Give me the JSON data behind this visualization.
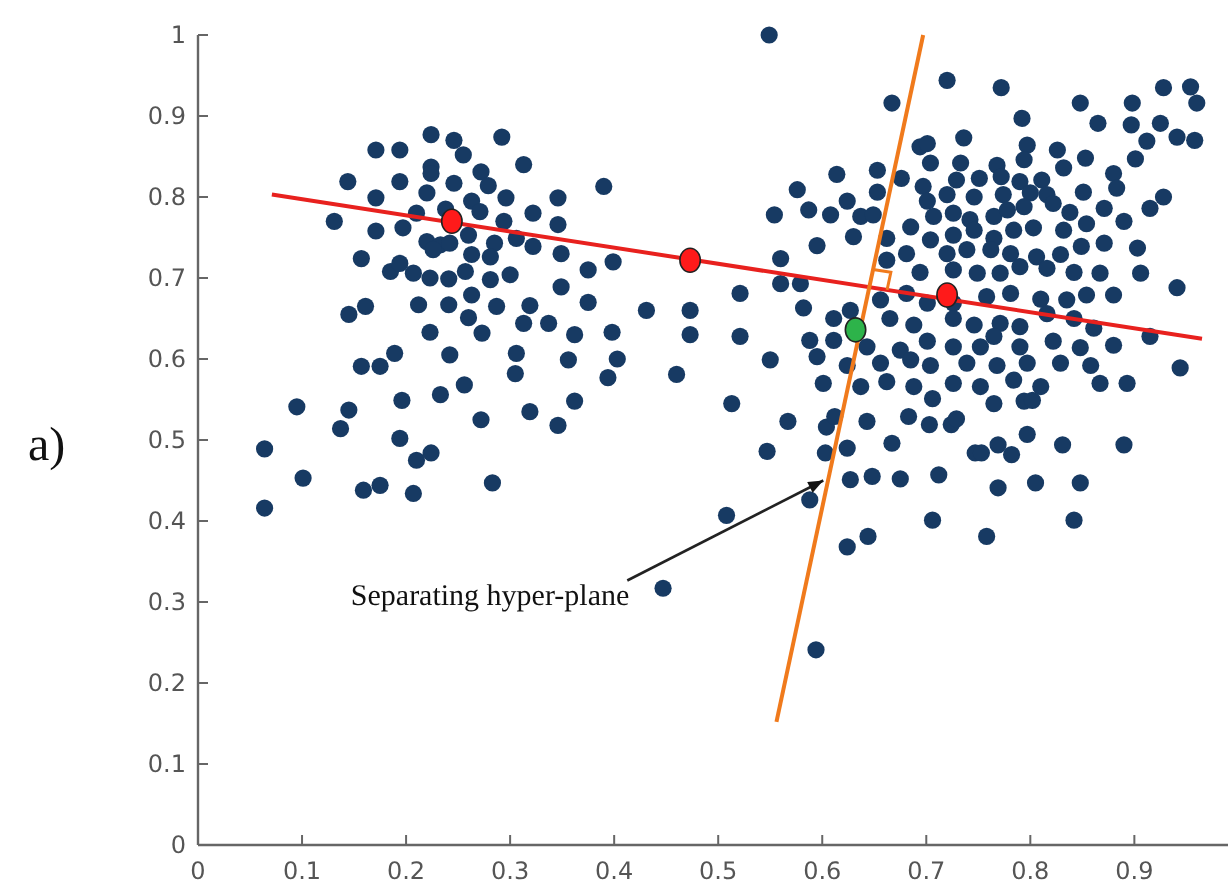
{
  "chart_data": {
    "type": "scatter",
    "xlim": [
      0,
      0.99
    ],
    "ylim": [
      0,
      1
    ],
    "xticks": [
      0,
      0.1,
      0.2,
      0.3,
      0.4,
      0.5,
      0.6,
      0.7,
      0.8,
      0.9
    ],
    "yticks": [
      0,
      0.1,
      0.2,
      0.3,
      0.4,
      0.5,
      0.6,
      0.7,
      0.8,
      0.9,
      1
    ],
    "annotations": [
      {
        "text": "Separating hyper-plane",
        "x": 0.601,
        "y": 0.45
      },
      "a)"
    ],
    "series": [
      {
        "type": "scatter",
        "color": "#173a63",
        "marker": "circle",
        "x": [
          0.224,
          0.246,
          0.292,
          0.171,
          0.194,
          0.255,
          0.313,
          0.224,
          0.224,
          0.272,
          0.279,
          0.144,
          0.194,
          0.246,
          0.39,
          0.22,
          0.171,
          0.263,
          0.296,
          0.346,
          0.21,
          0.238,
          0.271,
          0.322,
          0.131,
          0.197,
          0.171,
          0.294,
          0.346,
          0.26,
          0.306,
          0.322,
          0.22,
          0.233,
          0.242,
          0.226,
          0.285,
          0.263,
          0.281,
          0.349,
          0.157,
          0.399,
          0.375,
          0.185,
          0.194,
          0.207,
          0.223,
          0.241,
          0.257,
          0.281,
          0.3,
          0.349,
          0.145,
          0.161,
          0.212,
          0.241,
          0.263,
          0.287,
          0.319,
          0.337,
          0.313,
          0.26,
          0.273,
          0.223,
          0.362,
          0.375,
          0.398,
          0.431,
          0.473,
          0.473,
          0.189,
          0.157,
          0.175,
          0.242,
          0.306,
          0.356,
          0.403,
          0.394,
          0.46,
          0.305,
          0.256,
          0.196,
          0.233,
          0.362,
          0.095,
          0.145,
          0.137,
          0.194,
          0.272,
          0.319,
          0.346,
          0.064,
          0.21,
          0.224,
          0.101,
          0.159,
          0.175,
          0.207,
          0.283,
          0.064,
          0.447,
          0.549,
          0.72,
          0.772,
          0.667,
          0.848,
          0.898,
          0.928,
          0.954,
          0.96,
          0.792,
          0.865,
          0.897,
          0.925,
          0.736,
          0.694,
          0.701,
          0.797,
          0.826,
          0.853,
          0.901,
          0.941,
          0.958,
          0.912,
          0.704,
          0.733,
          0.768,
          0.794,
          0.614,
          0.653,
          0.676,
          0.729,
          0.751,
          0.772,
          0.79,
          0.811,
          0.832,
          0.88,
          0.576,
          0.653,
          0.697,
          0.72,
          0.746,
          0.774,
          0.8,
          0.816,
          0.851,
          0.883,
          0.928,
          0.554,
          0.608,
          0.587,
          0.624,
          0.637,
          0.649,
          0.701,
          0.707,
          0.726,
          0.742,
          0.765,
          0.778,
          0.794,
          0.822,
          0.838,
          0.871,
          0.915,
          0.63,
          0.662,
          0.685,
          0.704,
          0.726,
          0.746,
          0.765,
          0.784,
          0.803,
          0.832,
          0.854,
          0.89,
          0.595,
          0.681,
          0.72,
          0.739,
          0.762,
          0.781,
          0.806,
          0.829,
          0.849,
          0.871,
          0.903,
          0.56,
          0.662,
          0.694,
          0.726,
          0.749,
          0.771,
          0.79,
          0.816,
          0.842,
          0.867,
          0.906,
          0.56,
          0.579,
          0.521,
          0.582,
          0.627,
          0.656,
          0.681,
          0.701,
          0.726,
          0.758,
          0.781,
          0.81,
          0.835,
          0.854,
          0.88,
          0.941,
          0.521,
          0.611,
          0.665,
          0.688,
          0.726,
          0.746,
          0.771,
          0.79,
          0.816,
          0.842,
          0.861,
          0.915,
          0.588,
          0.611,
          0.643,
          0.675,
          0.701,
          0.726,
          0.752,
          0.765,
          0.79,
          0.822,
          0.848,
          0.88,
          0.55,
          0.595,
          0.624,
          0.656,
          0.685,
          0.704,
          0.739,
          0.768,
          0.797,
          0.829,
          0.858,
          0.944,
          0.601,
          0.637,
          0.662,
          0.688,
          0.726,
          0.752,
          0.784,
          0.81,
          0.867,
          0.893,
          0.513,
          0.567,
          0.604,
          0.612,
          0.643,
          0.683,
          0.706,
          0.703,
          0.724,
          0.729,
          0.765,
          0.794,
          0.802,
          0.547,
          0.603,
          0.624,
          0.667,
          0.747,
          0.753,
          0.769,
          0.782,
          0.797,
          0.831,
          0.89,
          0.627,
          0.648,
          0.675,
          0.712,
          0.769,
          0.805,
          0.848,
          0.588,
          0.508,
          0.706,
          0.758,
          0.842,
          0.644,
          0.624,
          0.594
        ],
        "values": [
          0.877,
          0.87,
          0.874,
          0.858,
          0.858,
          0.852,
          0.84,
          0.837,
          0.829,
          0.831,
          0.814,
          0.819,
          0.819,
          0.817,
          0.813,
          0.805,
          0.799,
          0.795,
          0.799,
          0.799,
          0.78,
          0.785,
          0.782,
          0.78,
          0.77,
          0.762,
          0.758,
          0.77,
          0.766,
          0.753,
          0.749,
          0.739,
          0.745,
          0.741,
          0.743,
          0.735,
          0.743,
          0.729,
          0.726,
          0.73,
          0.724,
          0.72,
          0.71,
          0.708,
          0.718,
          0.706,
          0.7,
          0.699,
          0.708,
          0.698,
          0.704,
          0.689,
          0.655,
          0.665,
          0.667,
          0.667,
          0.679,
          0.665,
          0.666,
          0.644,
          0.644,
          0.651,
          0.632,
          0.633,
          0.63,
          0.67,
          0.633,
          0.66,
          0.66,
          0.63,
          0.607,
          0.591,
          0.591,
          0.605,
          0.607,
          0.599,
          0.6,
          0.577,
          0.581,
          0.582,
          0.568,
          0.549,
          0.556,
          0.548,
          0.541,
          0.537,
          0.514,
          0.502,
          0.525,
          0.535,
          0.518,
          0.489,
          0.475,
          0.484,
          0.453,
          0.438,
          0.444,
          0.434,
          0.447,
          0.416,
          0.317,
          1.0,
          0.944,
          0.935,
          0.916,
          0.916,
          0.916,
          0.935,
          0.936,
          0.916,
          0.897,
          0.891,
          0.889,
          0.891,
          0.873,
          0.862,
          0.866,
          0.864,
          0.858,
          0.848,
          0.847,
          0.874,
          0.87,
          0.869,
          0.842,
          0.842,
          0.839,
          0.846,
          0.828,
          0.833,
          0.823,
          0.821,
          0.823,
          0.825,
          0.819,
          0.821,
          0.836,
          0.829,
          0.809,
          0.806,
          0.813,
          0.803,
          0.8,
          0.803,
          0.805,
          0.803,
          0.806,
          0.811,
          0.8,
          0.778,
          0.778,
          0.784,
          0.795,
          0.776,
          0.778,
          0.795,
          0.776,
          0.78,
          0.772,
          0.776,
          0.784,
          0.788,
          0.792,
          0.781,
          0.786,
          0.786,
          0.751,
          0.749,
          0.763,
          0.747,
          0.753,
          0.759,
          0.749,
          0.759,
          0.762,
          0.759,
          0.767,
          0.77,
          0.74,
          0.73,
          0.73,
          0.735,
          0.735,
          0.73,
          0.726,
          0.729,
          0.739,
          0.743,
          0.737,
          0.724,
          0.722,
          0.707,
          0.71,
          0.706,
          0.706,
          0.714,
          0.712,
          0.707,
          0.706,
          0.706,
          0.693,
          0.693,
          0.681,
          0.663,
          0.66,
          0.673,
          0.681,
          0.669,
          0.669,
          0.677,
          0.681,
          0.674,
          0.673,
          0.679,
          0.679,
          0.688,
          0.628,
          0.65,
          0.65,
          0.642,
          0.65,
          0.642,
          0.644,
          0.64,
          0.656,
          0.65,
          0.638,
          0.628,
          0.623,
          0.623,
          0.615,
          0.611,
          0.622,
          0.615,
          0.615,
          0.628,
          0.615,
          0.622,
          0.614,
          0.617,
          0.599,
          0.603,
          0.592,
          0.595,
          0.599,
          0.592,
          0.595,
          0.592,
          0.595,
          0.595,
          0.592,
          0.589,
          0.57,
          0.566,
          0.572,
          0.566,
          0.57,
          0.566,
          0.574,
          0.566,
          0.57,
          0.57,
          0.545,
          0.523,
          0.516,
          0.529,
          0.523,
          0.529,
          0.551,
          0.519,
          0.519,
          0.526,
          0.545,
          0.548,
          0.549,
          0.486,
          0.484,
          0.49,
          0.496,
          0.484,
          0.484,
          0.494,
          0.482,
          0.507,
          0.494,
          0.494,
          0.451,
          0.455,
          0.452,
          0.457,
          0.441,
          0.447,
          0.447,
          0.426,
          0.407,
          0.401,
          0.381,
          0.401,
          0.381,
          0.368,
          0.241
        ]
      },
      {
        "type": "line",
        "color": "#e8211e",
        "x": [
          0.071,
          0.965
        ],
        "values": [
          0.803,
          0.625
        ]
      },
      {
        "type": "line",
        "color": "#f07a1c",
        "x": [
          0.556,
          0.697
        ],
        "values": [
          0.152,
          1.0
        ]
      },
      {
        "type": "scatter",
        "color": "#ff1a1a",
        "x": [
          0.244,
          0.473,
          0.72
        ],
        "values": [
          0.77,
          0.722,
          0.679
        ]
      },
      {
        "type": "scatter",
        "color": "#2db34a",
        "x": [
          0.632
        ],
        "values": [
          0.636
        ]
      }
    ]
  }
}
